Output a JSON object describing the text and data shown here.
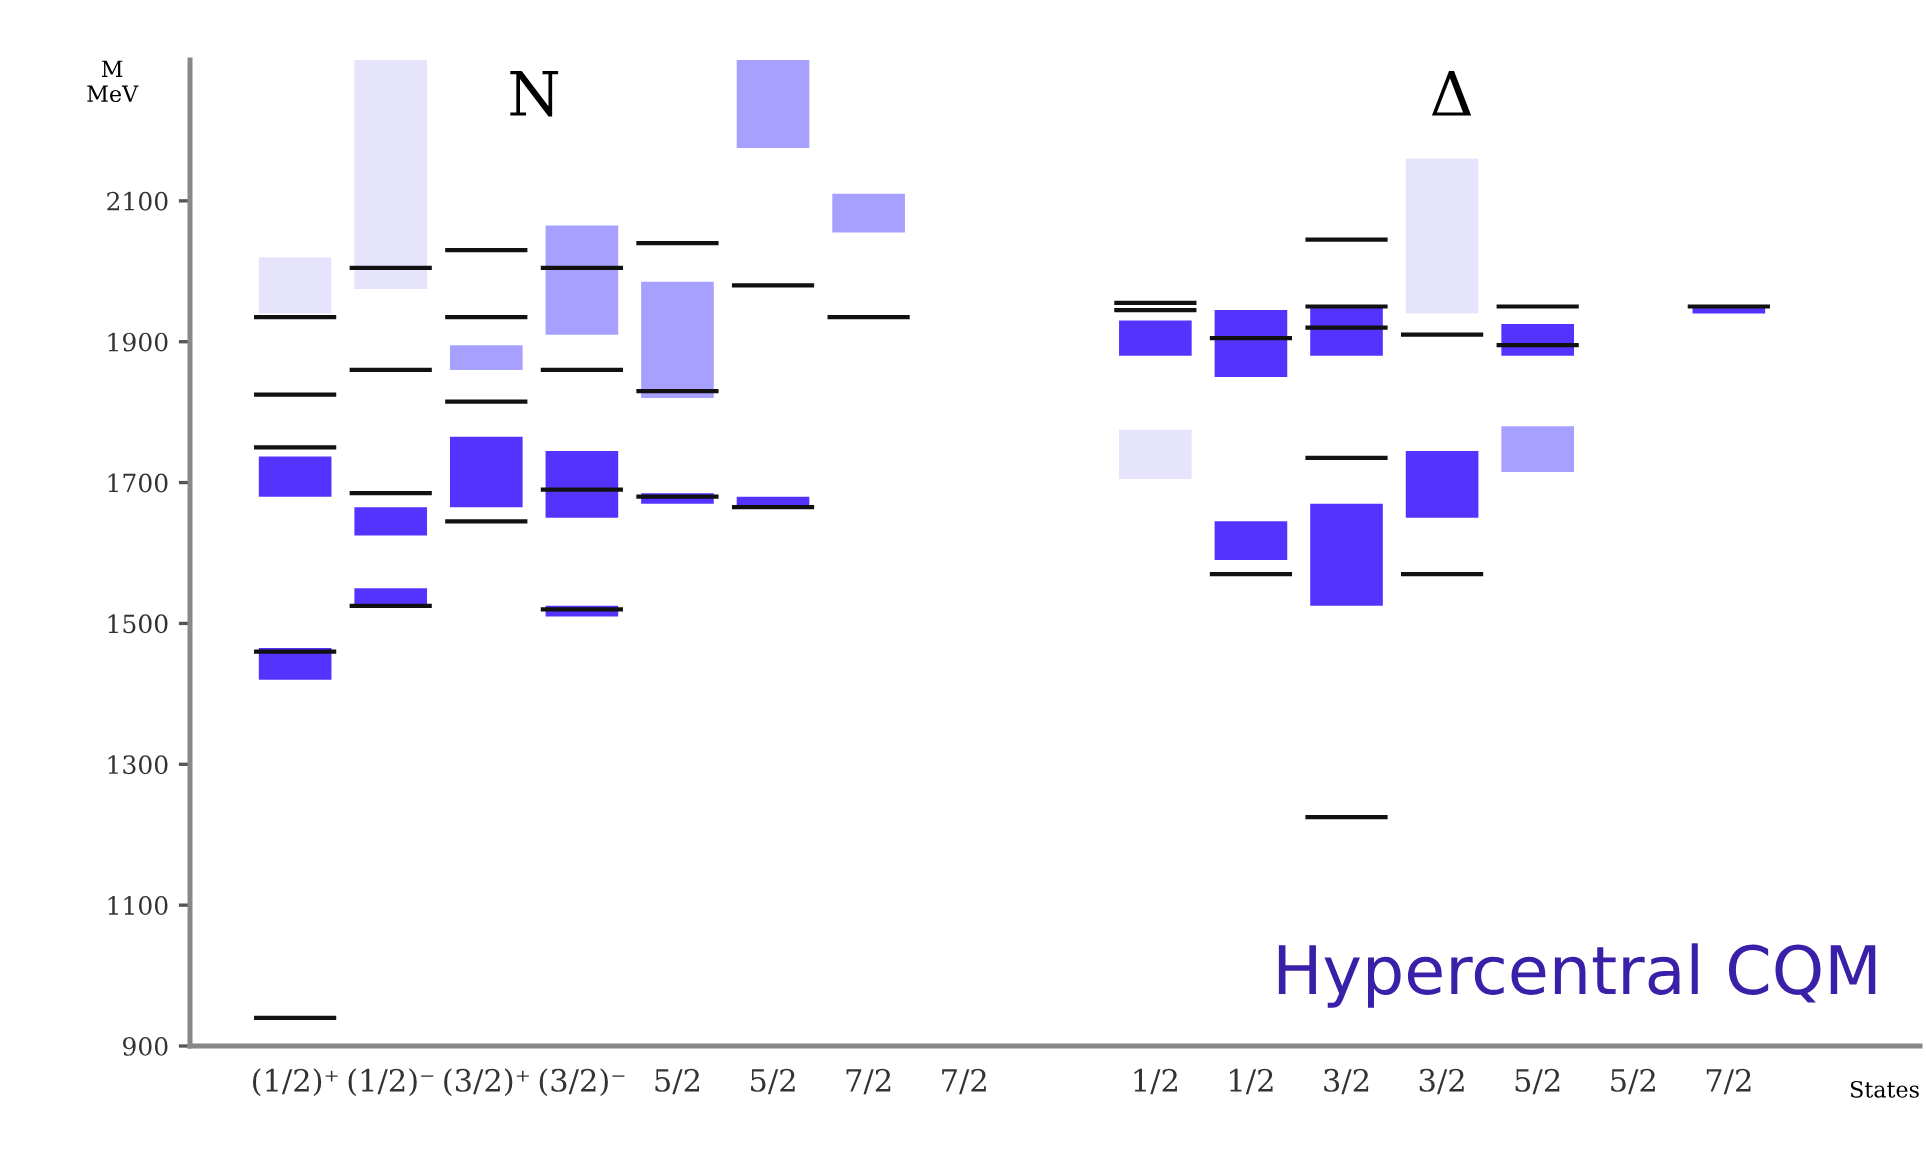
{
  "chart_data": {
    "type": "bar",
    "xlabel": "States",
    "ylabel": "M\nMeV",
    "categories": [
      "(1/2)⁺",
      "(1/2)⁻",
      "(3/2)⁺",
      "(3/2)⁻",
      "5/2",
      "5/2",
      "7/2",
      "7/2",
      null,
      "1/2",
      "1/2",
      "3/2",
      "3/2",
      "5/2",
      "5/2",
      "7/2"
    ],
    "ylim": [
      900,
      2300
    ],
    "yticks": [
      900,
      1100,
      1300,
      1500,
      1700,
      1900,
      2100
    ],
    "grid": false,
    "series": [
      {
        "base": [
          1680,
          1975,
          1860,
          1910,
          1820,
          2175,
          2055,
          null,
          null,
          1880,
          1850,
          1880,
          1940,
          1880,
          null,
          1940
        ],
        "values": [
          57,
          325,
          35,
          155,
          165,
          125,
          55,
          null,
          null,
          50,
          95,
          70,
          220,
          45,
          null,
          10
        ],
        "colors": [
          "#5533ff",
          "#e6e4fc",
          "#a8a0ff",
          "#a8a0ff",
          "#a8a0ff",
          "#a8a0ff",
          "#a8a0ff",
          null,
          null,
          "#5533ff",
          "#5533ff",
          "#5533ff",
          "#e6e4fc",
          "#5533ff",
          null,
          "#5533ff"
        ]
      },
      {
        "base": [
          1420,
          1625,
          1665,
          1650,
          1670,
          1665,
          null,
          null,
          null,
          1705,
          1590,
          1525,
          1650,
          1715,
          null,
          null
        ],
        "values": [
          45,
          40,
          100,
          95,
          15,
          15,
          null,
          null,
          null,
          70,
          55,
          145,
          95,
          65,
          null,
          null
        ],
        "colors": [
          "#5533ff",
          "#5533ff",
          "#5533ff",
          "#5533ff",
          "#5533ff",
          "#5533ff",
          null,
          null,
          null,
          "#e6e4fc",
          "#5533ff",
          "#5533ff",
          "#5533ff",
          "#a8a0ff",
          null,
          null
        ]
      },
      {
        "base": [
          1940,
          1525,
          null,
          1510,
          null,
          null,
          null,
          null,
          null,
          null,
          null,
          null,
          null,
          null,
          null,
          null
        ],
        "values": [
          80,
          25,
          null,
          15,
          null,
          null,
          null,
          null,
          null,
          null,
          null,
          null,
          null,
          null,
          null,
          null
        ],
        "colors": [
          "#e6e4fc",
          "#5533ff",
          null,
          "#5533ff",
          null,
          null,
          null,
          null,
          null,
          null,
          null,
          null,
          null,
          null,
          null,
          null
        ]
      },
      {
        "color": "#111111",
        "base": [
          1932,
          2002,
          2027,
          2002,
          2037,
          1977,
          1932,
          null,
          null,
          1952,
          1902,
          2042,
          1907,
          1947,
          null,
          1947
        ],
        "values": [
          6,
          6,
          6,
          6,
          6,
          6,
          6,
          null,
          null,
          6,
          6,
          6,
          6,
          6,
          null,
          6
        ]
      },
      {
        "color": "#111111",
        "base": [
          1822,
          1857,
          1932,
          1857,
          1827,
          1662,
          null,
          null,
          null,
          1942,
          1567,
          1947,
          1567,
          1892,
          null,
          null
        ],
        "values": [
          6,
          6,
          6,
          6,
          6,
          6,
          null,
          null,
          null,
          6,
          6,
          6,
          6,
          6,
          null,
          null
        ]
      },
      {
        "color": "#111111",
        "base": [
          1747,
          1682,
          1812,
          1687,
          1677,
          null,
          null,
          null,
          null,
          null,
          null,
          1917,
          null,
          null,
          null,
          null
        ],
        "values": [
          6,
          6,
          6,
          6,
          6,
          null,
          null,
          null,
          null,
          null,
          null,
          6,
          null,
          null,
          null,
          null
        ]
      },
      {
        "color": "#111111",
        "base": [
          1457,
          1522,
          1642,
          1517,
          null,
          null,
          null,
          null,
          null,
          null,
          null,
          1732,
          null,
          null,
          null,
          null
        ],
        "values": [
          6,
          6,
          6,
          6,
          null,
          null,
          null,
          null,
          null,
          null,
          null,
          6,
          null,
          null,
          null,
          null
        ]
      },
      {
        "color": "#111111",
        "base": [
          937,
          null,
          null,
          null,
          null,
          null,
          null,
          null,
          null,
          null,
          null,
          1222,
          null,
          null,
          null,
          null
        ],
        "values": [
          6,
          null,
          null,
          null,
          null,
          null,
          null,
          null,
          null,
          null,
          null,
          6,
          null,
          null,
          null,
          null
        ]
      }
    ],
    "annotations": [
      "N",
      "Δ",
      "Hypercentral CQM"
    ]
  }
}
